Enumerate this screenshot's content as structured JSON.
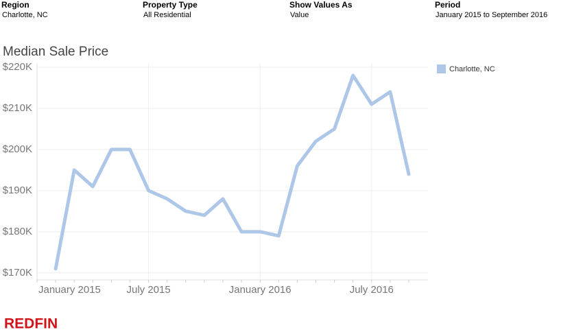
{
  "header": {
    "filters": [
      {
        "label": "Region",
        "value": "Charlotte, NC"
      },
      {
        "label": "Property Type",
        "value": "All Residential"
      },
      {
        "label": "Show Values As",
        "value": "Value"
      },
      {
        "label": "Period",
        "value": "January 2015 to September 2016"
      }
    ]
  },
  "chart_data": {
    "type": "line",
    "title": "Median Sale Price",
    "categories": [
      "January 2015",
      null,
      null,
      null,
      null,
      null,
      "July 2015",
      null,
      null,
      null,
      null,
      null,
      "January 2016",
      null,
      null,
      null,
      null,
      null,
      "July 2016",
      null,
      null
    ],
    "series": [
      {
        "name": "Charlotte, NC",
        "color": "#aec7e8",
        "values": [
          null,
          171000,
          195000,
          191000,
          200000,
          200000,
          190000,
          188000,
          185000,
          184000,
          188000,
          180000,
          180000,
          179000,
          196000,
          202000,
          205000,
          218000,
          211000,
          214000,
          194000
        ]
      }
    ],
    "ylim": [
      168300,
      221000
    ],
    "yticks": [
      {
        "value": 170000,
        "label": "$170K"
      },
      {
        "value": 180000,
        "label": "$180K"
      },
      {
        "value": 190000,
        "label": "$190K"
      },
      {
        "value": 200000,
        "label": "$200K"
      },
      {
        "value": 210000,
        "label": "$210K"
      },
      {
        "value": 220000,
        "label": "$220K"
      }
    ],
    "grid": true,
    "legend": "right"
  },
  "footer": {
    "logo": "REDFIN"
  }
}
